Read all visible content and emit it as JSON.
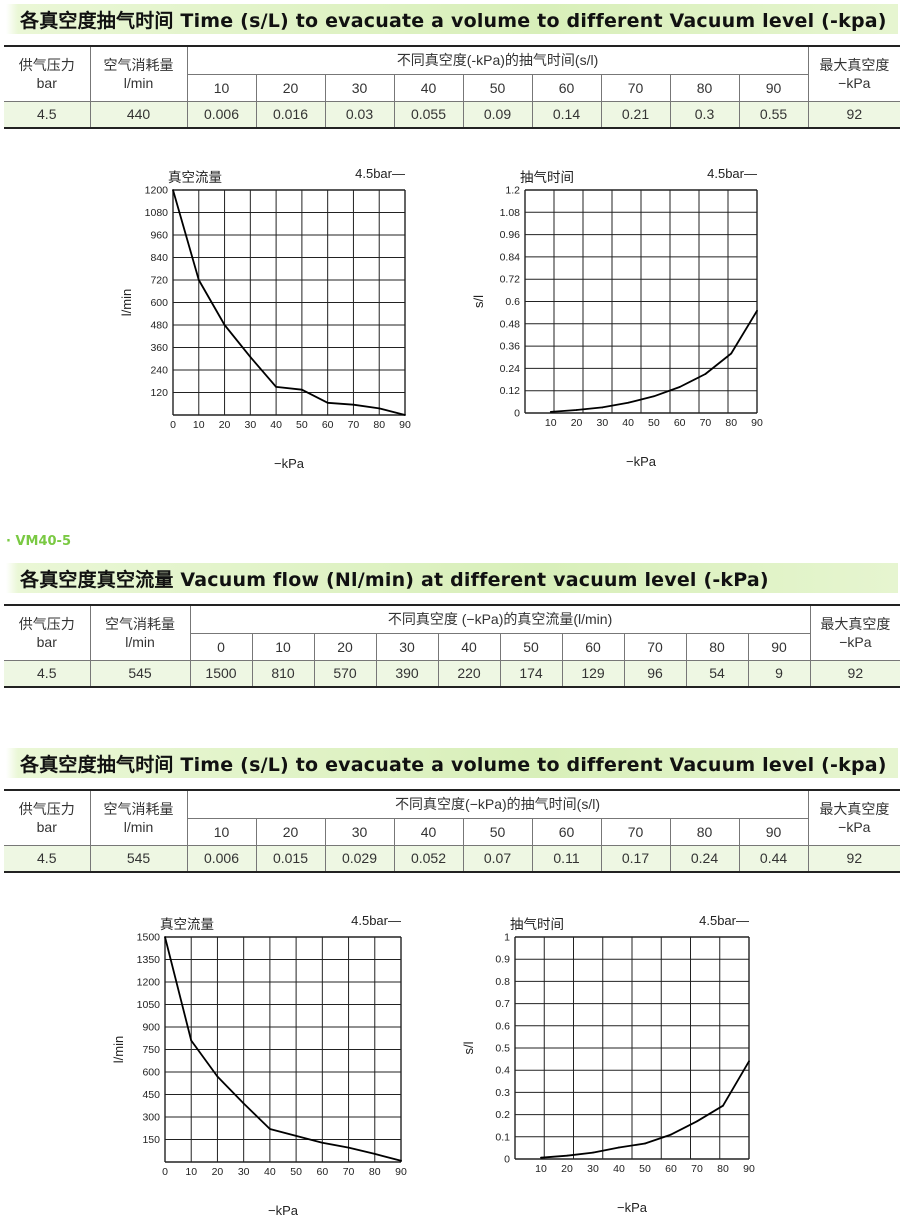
{
  "section1": {
    "title": "各真空度抽气时间 Time (s/L) to evacuate a volume to different Vacuum level (-kpa)",
    "table": {
      "col_supply": [
        "供气压力",
        "bar"
      ],
      "col_air": [
        "空气消耗量",
        "l/min"
      ],
      "col_group": "不同真空度(-kPa)的抽气时间(s/l)",
      "col_max": [
        "最大真空度",
        "−kPa"
      ],
      "levels": [
        "10",
        "20",
        "30",
        "40",
        "50",
        "60",
        "70",
        "80",
        "90"
      ],
      "row": {
        "supply": "4.5",
        "air": "440",
        "values": [
          "0.006",
          "0.016",
          "0.03",
          "0.055",
          "0.09",
          "0.14",
          "0.21",
          "0.3",
          "0.55"
        ],
        "max": "92"
      }
    }
  },
  "chart_data": [
    {
      "type": "line",
      "title": "真空流量",
      "legend": "4.5bar—",
      "xlabel": "−kPa",
      "ylabel": "l/min",
      "xlim": [
        0,
        90
      ],
      "ylim": [
        0,
        1200
      ],
      "x_ticks": [
        "0",
        "10",
        "20",
        "30",
        "40",
        "50",
        "60",
        "70",
        "80",
        "90"
      ],
      "y_ticks": [
        "120",
        "240",
        "360",
        "480",
        "600",
        "720",
        "840",
        "960",
        "1080",
        "1200"
      ],
      "grid": true,
      "series": [
        {
          "x": [
            0,
            10,
            20,
            30,
            40,
            50,
            60,
            70,
            80,
            90
          ],
          "y": [
            1200,
            720,
            480,
            310,
            150,
            135,
            65,
            55,
            35,
            0
          ]
        }
      ]
    },
    {
      "type": "line",
      "title": "抽气时间",
      "legend": "4.5bar—",
      "xlabel": "−kPa",
      "ylabel": "s/l",
      "xlim": [
        0,
        90
      ],
      "ylim": [
        0,
        1.2
      ],
      "x_ticks": [
        "10",
        "20",
        "30",
        "40",
        "50",
        "60",
        "70",
        "80",
        "90"
      ],
      "y_ticks": [
        "0",
        "0.12",
        "0.24",
        "0.36",
        "0.48",
        "0.6",
        "0.72",
        "0.84",
        "0.96",
        "1.08",
        "1.2"
      ],
      "grid": true,
      "series": [
        {
          "x": [
            10,
            20,
            30,
            40,
            50,
            60,
            70,
            80,
            90
          ],
          "y": [
            0.006,
            0.016,
            0.03,
            0.055,
            0.09,
            0.14,
            0.21,
            0.32,
            0.55
          ]
        }
      ]
    },
    {
      "type": "line",
      "title": "真空流量",
      "legend": "4.5bar—",
      "xlabel": "−kPa",
      "ylabel": "l/min",
      "xlim": [
        0,
        90
      ],
      "ylim": [
        0,
        1500
      ],
      "x_ticks": [
        "0",
        "10",
        "20",
        "30",
        "40",
        "50",
        "60",
        "70",
        "80",
        "90"
      ],
      "y_ticks": [
        "150",
        "300",
        "450",
        "600",
        "750",
        "900",
        "1050",
        "1200",
        "1350",
        "1500"
      ],
      "grid": true,
      "series": [
        {
          "x": [
            0,
            10,
            20,
            30,
            40,
            50,
            60,
            70,
            80,
            90
          ],
          "y": [
            1500,
            810,
            570,
            390,
            220,
            174,
            129,
            96,
            54,
            9
          ]
        }
      ]
    },
    {
      "type": "line",
      "title": "抽气时间",
      "legend": "4.5bar—",
      "xlabel": "−kPa",
      "ylabel": "s/l",
      "xlim": [
        0,
        90
      ],
      "ylim": [
        0,
        1
      ],
      "x_ticks": [
        "10",
        "20",
        "30",
        "40",
        "50",
        "60",
        "70",
        "80",
        "90"
      ],
      "y_ticks": [
        "0",
        "0.1",
        "0.2",
        "0.3",
        "0.4",
        "0.5",
        "0.6",
        "0.7",
        "0.8",
        "0.9",
        "1"
      ],
      "grid": true,
      "series": [
        {
          "x": [
            10,
            20,
            30,
            40,
            50,
            60,
            70,
            80,
            90
          ],
          "y": [
            0.006,
            0.015,
            0.029,
            0.052,
            0.07,
            0.11,
            0.17,
            0.24,
            0.44
          ]
        }
      ]
    }
  ],
  "model": "· VM40-5",
  "section2": {
    "title": "各真空度真空流量 Vacuum flow (Nl/min) at different vacuum level (-kPa)",
    "table": {
      "col_supply": [
        "供气压力",
        "bar"
      ],
      "col_air": [
        "空气消耗量",
        "l/min"
      ],
      "col_group": "不同真空度 (−kPa)的真空流量(l/min)",
      "col_max": [
        "最大真空度",
        "−kPa"
      ],
      "levels": [
        "0",
        "10",
        "20",
        "30",
        "40",
        "50",
        "60",
        "70",
        "80",
        "90"
      ],
      "row": {
        "supply": "4.5",
        "air": "545",
        "values": [
          "1500",
          "810",
          "570",
          "390",
          "220",
          "174",
          "129",
          "96",
          "54",
          "9"
        ],
        "max": "92"
      }
    }
  },
  "section3": {
    "title": "各真空度抽气时间 Time (s/L) to evacuate a volume to different Vacuum level (-kpa)",
    "table": {
      "col_supply": [
        "供气压力",
        "bar"
      ],
      "col_air": [
        "空气消耗量",
        "l/min"
      ],
      "col_group": "不同真空度(−kPa)的抽气时间(s/l)",
      "col_max": [
        "最大真空度",
        "−kPa"
      ],
      "levels": [
        "10",
        "20",
        "30",
        "40",
        "50",
        "60",
        "70",
        "80",
        "90"
      ],
      "row": {
        "supply": "4.5",
        "air": "545",
        "values": [
          "0.006",
          "0.015",
          "0.029",
          "0.052",
          "0.07",
          "0.11",
          "0.17",
          "0.24",
          "0.44"
        ],
        "max": "92"
      }
    }
  },
  "colors": {
    "header_band": "#d8efb9",
    "row_tint": "#eef7e3",
    "model_tag": "#7ac943",
    "line": "#000000"
  }
}
